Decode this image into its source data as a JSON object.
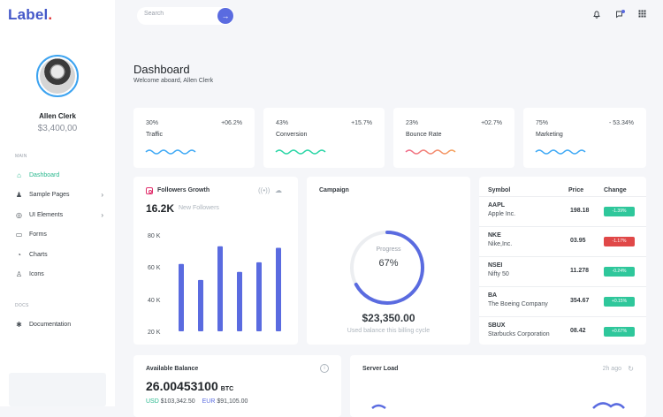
{
  "brand": {
    "name": "Label",
    "dot": "."
  },
  "search": {
    "placeholder": "Search",
    "button": "→"
  },
  "user": {
    "name": "Allen Clerk",
    "balance": "$3,400,00"
  },
  "sidebar": {
    "main_label": "MAIN",
    "items": [
      {
        "label": "Dashboard",
        "icon": "home-icon",
        "glyph": "⌂",
        "chevron": false
      },
      {
        "label": "Sample Pages",
        "icon": "user-icon",
        "glyph": "♟",
        "chevron": true
      },
      {
        "label": "UI Elements",
        "icon": "target-icon",
        "glyph": "◎",
        "chevron": true
      },
      {
        "label": "Forms",
        "icon": "forms-icon",
        "glyph": "▭",
        "chevron": false
      },
      {
        "label": "Charts",
        "icon": "chart-icon",
        "glyph": "◔",
        "chevron": false
      },
      {
        "label": "Icons",
        "icon": "icons-icon",
        "glyph": "♙",
        "chevron": false
      }
    ],
    "docs_label": "DOCS",
    "docs_items": [
      {
        "label": "Documentation",
        "icon": "asterisk-icon",
        "glyph": "✱"
      }
    ]
  },
  "page": {
    "title": "Dashboard",
    "subtitle": "Welcome aboard, Allen Clerk"
  },
  "stats": [
    {
      "pct": "30%",
      "change": "+06.2%",
      "label": "Traffic",
      "color": "#3fa9f5"
    },
    {
      "pct": "43%",
      "change": "+15.7%",
      "label": "Conversion",
      "color": "#2bd6a6"
    },
    {
      "pct": "23%",
      "change": "+02.7%",
      "label": "Bounce Rate",
      "color": "#f06a8a"
    },
    {
      "pct": "75%",
      "change": "- 53.34%",
      "label": "Marketing",
      "color": "#3fa9f5"
    }
  ],
  "followers": {
    "title": "Followers Growth",
    "count": "16.2K",
    "count_label": "New Followers",
    "chart_data": {
      "type": "bar",
      "categories": [
        "",
        "",
        "",
        "",
        "",
        ""
      ],
      "values": [
        62,
        52,
        73,
        57,
        63,
        72
      ],
      "ylim": [
        20,
        80
      ],
      "yticks": [
        "80 K",
        "60 K",
        "40 K",
        "20 K"
      ],
      "color": "#5a6be0"
    }
  },
  "campaign": {
    "title": "Campaign",
    "progress_label": "Progress",
    "progress_value": "67%",
    "progress": 0.67,
    "amount": "$23,350.00",
    "caption": "Used balance this billing cycle"
  },
  "stocks": {
    "headers": {
      "symbol": "Symbol",
      "price": "Price",
      "change": "Change"
    },
    "rows": [
      {
        "symbol": "AAPL",
        "name": "Apple Inc.",
        "price": "198.18",
        "change": "-1.39%",
        "color": "#2fc79b"
      },
      {
        "symbol": "NKE",
        "name": "Nike,Inc.",
        "price": "03.95",
        "change": "-1.17%",
        "color": "#e04848"
      },
      {
        "symbol": "NSEI",
        "name": "Nifty 50",
        "price": "11.278",
        "change": "-0.24%",
        "color": "#2fc79b"
      },
      {
        "symbol": "BA",
        "name": "The Boeing Company",
        "price": "354.67",
        "change": "+0.15%",
        "color": "#2fc79b"
      },
      {
        "symbol": "SBUX",
        "name": "Starbucks Corporation",
        "price": "08.42",
        "change": "+0.67%",
        "color": "#2fc79b"
      }
    ]
  },
  "balance": {
    "title": "Available Balance",
    "value": "26.00453100",
    "currency": "BTC",
    "usd_label": "USD",
    "usd": "$103,342.50",
    "eur_label": "EUR",
    "eur": "$91,105.00"
  },
  "server": {
    "title": "Server Load",
    "ago": "2h ago"
  }
}
